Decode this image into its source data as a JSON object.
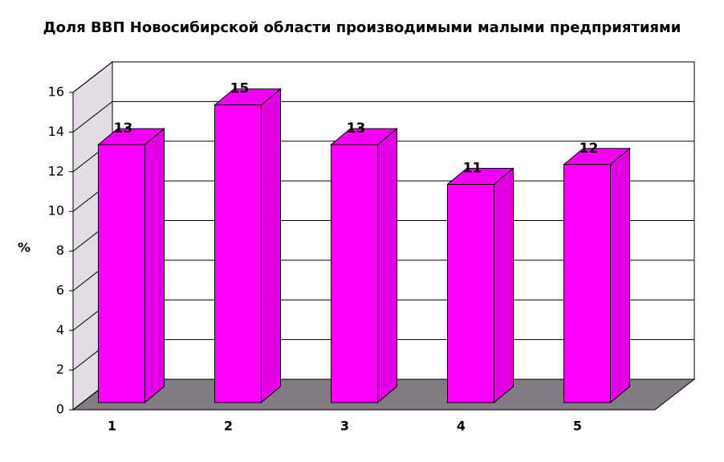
{
  "chart_data": {
    "type": "bar",
    "title": "Доля ВВП Новосибирской области производимыми малыми предприятиями",
    "y_label": "%",
    "categories": [
      "1",
      "2",
      "3",
      "4",
      "5"
    ],
    "values": [
      13,
      15,
      13,
      11,
      12
    ],
    "color": "#ff00ff",
    "ylim": [
      0,
      16
    ],
    "yticks": [
      0,
      2,
      4,
      6,
      8,
      10,
      12,
      14,
      16
    ],
    "grid": true
  }
}
